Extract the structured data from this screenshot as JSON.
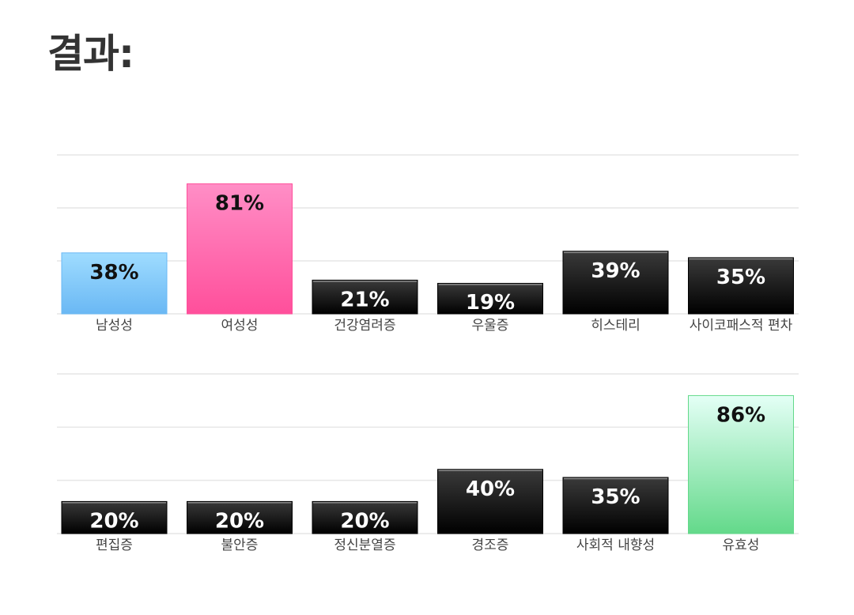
{
  "page": {
    "title": "결과:"
  },
  "chart_data": [
    {
      "type": "bar",
      "title": "",
      "xlabel": "",
      "ylabel": "",
      "ylim": [
        0,
        100
      ],
      "grid": true,
      "categories": [
        "남성성",
        "여성성",
        "건강염려증",
        "우울증",
        "히스테리",
        "사이코패스적 편차"
      ],
      "values": [
        38,
        81,
        21,
        19,
        39,
        35
      ],
      "value_labels": [
        "38%",
        "81%",
        "21%",
        "19%",
        "39%",
        "35%"
      ],
      "bar_styles": [
        "blue",
        "pink",
        "black",
        "black",
        "black",
        "black"
      ]
    },
    {
      "type": "bar",
      "title": "",
      "xlabel": "",
      "ylabel": "",
      "ylim": [
        0,
        100
      ],
      "grid": true,
      "categories": [
        "편집증",
        "불안증",
        "정신분열증",
        "경조증",
        "사회적 내향성",
        "유효성"
      ],
      "values": [
        20,
        20,
        20,
        40,
        35,
        86
      ],
      "value_labels": [
        "20%",
        "20%",
        "20%",
        "40%",
        "35%",
        "86%"
      ],
      "bar_styles": [
        "black",
        "black",
        "black",
        "black",
        "black",
        "green"
      ]
    }
  ],
  "colors": {
    "title": "#333333",
    "grid": "#e6e6e6",
    "label": "#444444",
    "blue_top": "#9fdcff",
    "blue_bottom": "#6ab8f4",
    "pink_top": "#ff8ec6",
    "pink_bottom": "#ff4f9b",
    "green_top": "#e4fff6",
    "green_bottom": "#63d98a",
    "black_top": "#3a3a3a",
    "black_bottom": "#000000"
  }
}
